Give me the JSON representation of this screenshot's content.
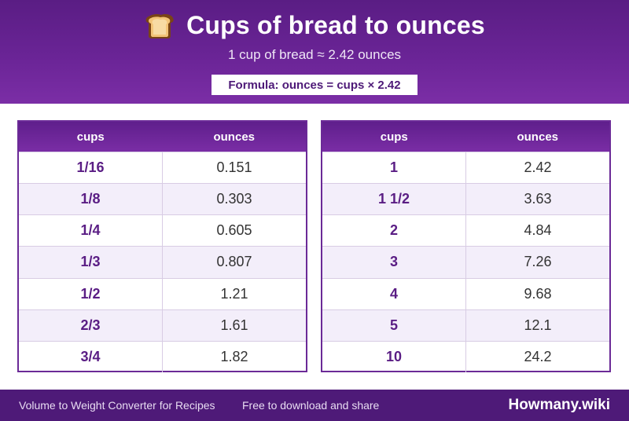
{
  "header": {
    "icon": "bread-icon",
    "title": "Cups of bread to ounces",
    "subtitle": "1 cup of bread ≈ 2.42 ounces",
    "formula": "Formula: ounces = cups × 2.42"
  },
  "tables": [
    {
      "headers": [
        "cups",
        "ounces"
      ],
      "rows": [
        [
          "1/16",
          "0.151"
        ],
        [
          "1/8",
          "0.303"
        ],
        [
          "1/4",
          "0.605"
        ],
        [
          "1/3",
          "0.807"
        ],
        [
          "1/2",
          "1.21"
        ],
        [
          "2/3",
          "1.61"
        ],
        [
          "3/4",
          "1.82"
        ]
      ]
    },
    {
      "headers": [
        "cups",
        "ounces"
      ],
      "rows": [
        [
          "1",
          "2.42"
        ],
        [
          "1 1/2",
          "3.63"
        ],
        [
          "2",
          "4.84"
        ],
        [
          "3",
          "7.26"
        ],
        [
          "4",
          "9.68"
        ],
        [
          "5",
          "12.1"
        ],
        [
          "10",
          "24.2"
        ]
      ]
    }
  ],
  "footer": {
    "left_text": "Volume to Weight Converter for Recipes",
    "mid_text": "Free to download and share",
    "brand": "Howmany.wiki"
  },
  "colors": {
    "primary": "#5a1d84",
    "accent": "#7b2ea6",
    "row_alt": "#f3eefa"
  }
}
